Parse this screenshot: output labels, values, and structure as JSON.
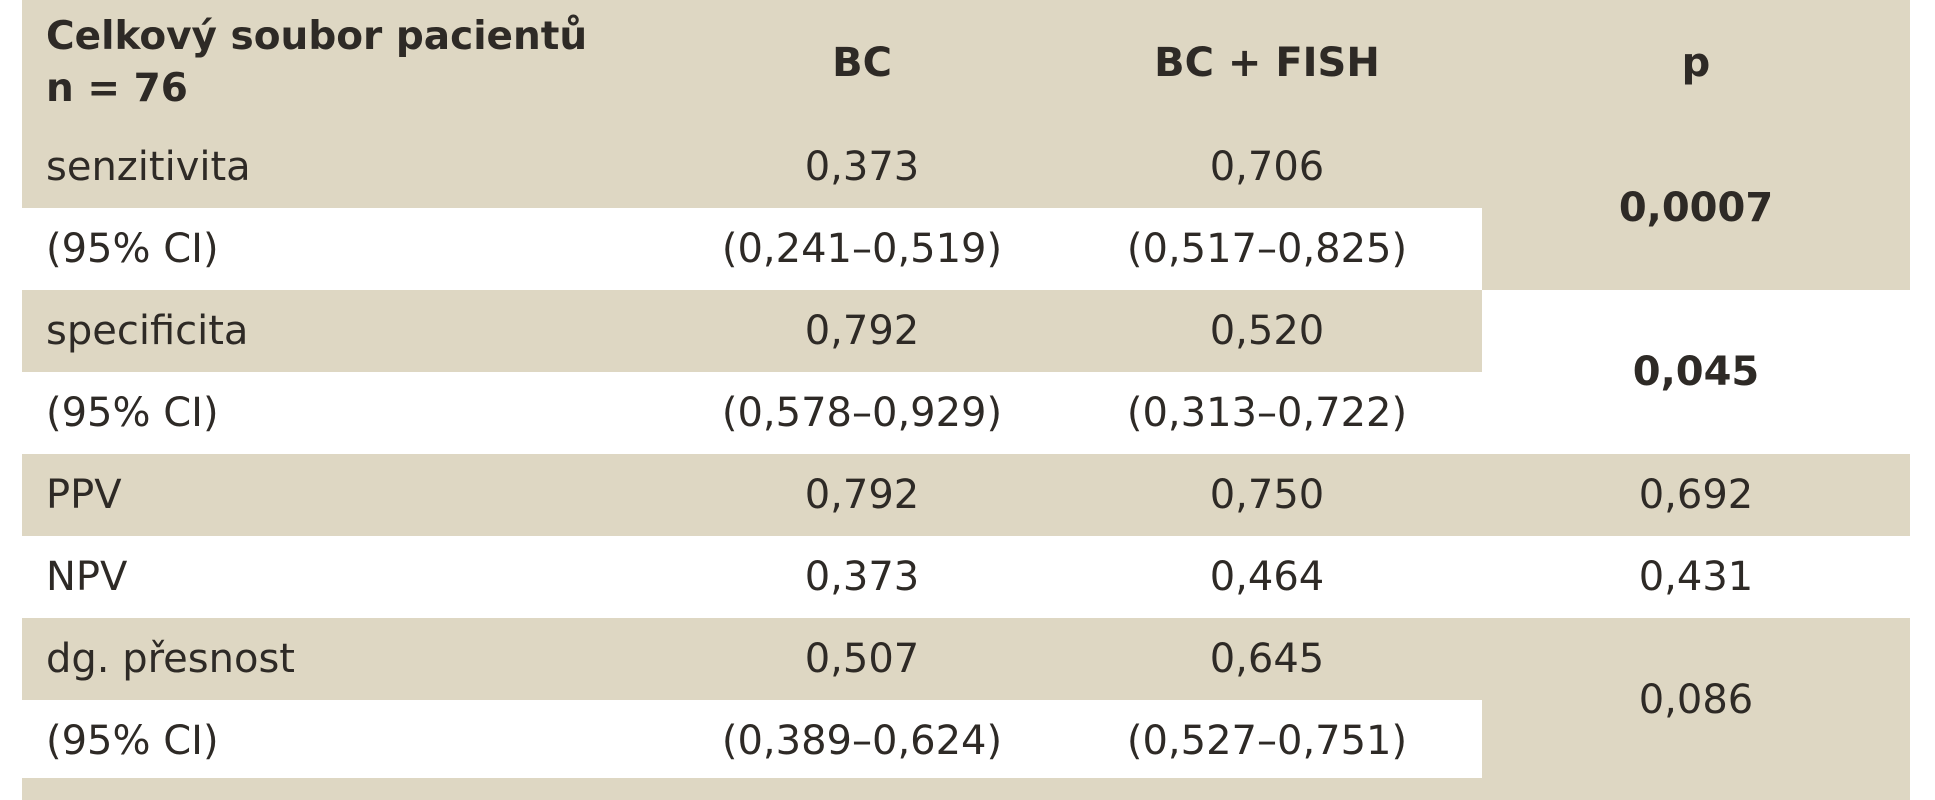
{
  "header": {
    "col1_line1": "Celkový soubor pacientů",
    "col1_line2": "n = 76",
    "col2": "BC",
    "col3": "BC + FISH",
    "col4": "p"
  },
  "rows": [
    {
      "label": "senzitivita",
      "bc": "0,373",
      "bcfish": "0,706"
    },
    {
      "label": "(95% CI)",
      "bc": "(0,241–0,519)",
      "bcfish": "(0,517–0,825)"
    },
    {
      "label": "specificita",
      "bc": "0,792",
      "bcfish": "0,520"
    },
    {
      "label": "(95% CI)",
      "bc": "(0,578–0,929)",
      "bcfish": "(0,313–0,722)"
    },
    {
      "label": "PPV",
      "bc": "0,792",
      "bcfish": "0,750"
    },
    {
      "label": "NPV",
      "bc": "0,373",
      "bcfish": "0,464"
    },
    {
      "label": "dg. přesnost",
      "bc": "0,507",
      "bcfish": "0,645"
    },
    {
      "label": "(95% CI)",
      "bc": "(0,389–0,624)",
      "bcfish": "(0,527–0,751)"
    }
  ],
  "p_values": {
    "senzitivita": "0,0007",
    "specificita": "0,045",
    "ppv": "0,692",
    "npv": "0,431",
    "dg_presnost": "0,086"
  }
}
